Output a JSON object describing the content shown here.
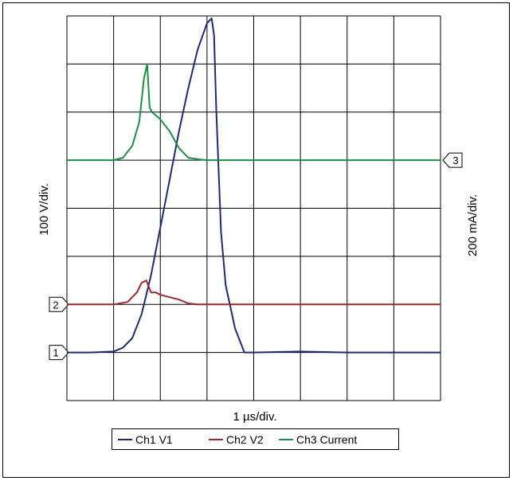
{
  "chart_data": {
    "type": "line",
    "title": "",
    "xlabel": "1 µs/div.",
    "ylabel_left": "100 V/div.",
    "ylabel_right": "200 mA/div.",
    "divisions": {
      "x": 8,
      "y": 8
    },
    "xlim": [
      0,
      8
    ],
    "ylim": [
      0,
      8
    ],
    "grid": true,
    "legend_position": "bottom",
    "markers": [
      {
        "label": "1",
        "side": "left",
        "level": 1.0
      },
      {
        "label": "2",
        "side": "left",
        "level": 2.0
      },
      {
        "label": "3",
        "side": "right",
        "level": 5.0
      }
    ],
    "series": [
      {
        "name": "Ch1 V1",
        "color": "#1f2a7a",
        "x": [
          0,
          0.5,
          1.0,
          1.2,
          1.4,
          1.6,
          1.8,
          2.0,
          2.2,
          2.4,
          2.6,
          2.8,
          3.0,
          3.1,
          3.15,
          3.2,
          3.3,
          3.4,
          3.6,
          3.8,
          4.0,
          5.0,
          6.0,
          7.0,
          8.0
        ],
        "y": [
          1.0,
          1.0,
          1.02,
          1.1,
          1.3,
          1.8,
          2.6,
          3.6,
          4.6,
          5.6,
          6.5,
          7.3,
          7.85,
          7.95,
          7.6,
          6.0,
          3.5,
          2.4,
          1.5,
          1.0,
          1.0,
          1.02,
          1.0,
          1.0,
          1.0
        ]
      },
      {
        "name": "Ch2 V2",
        "color": "#a0262a",
        "x": [
          0,
          1.0,
          1.3,
          1.5,
          1.6,
          1.7,
          1.8,
          1.9,
          2.0,
          2.2,
          2.4,
          2.6,
          2.8,
          3.0,
          4.0,
          6.0,
          8.0
        ],
        "y": [
          2.0,
          2.0,
          2.05,
          2.25,
          2.45,
          2.5,
          2.25,
          2.25,
          2.2,
          2.15,
          2.1,
          2.02,
          2.0,
          2.0,
          2.0,
          2.0,
          2.0
        ]
      },
      {
        "name": "Ch3 Current",
        "color": "#1a9140",
        "x": [
          0,
          1.0,
          1.2,
          1.4,
          1.55,
          1.65,
          1.72,
          1.77,
          1.82,
          2.0,
          2.2,
          2.4,
          2.6,
          2.8,
          3.0,
          4.0,
          6.0,
          8.0
        ],
        "y": [
          5.0,
          5.0,
          5.05,
          5.3,
          5.8,
          6.7,
          7.0,
          6.1,
          6.0,
          5.85,
          5.6,
          5.25,
          5.05,
          5.02,
          5.0,
          5.0,
          5.0,
          5.0
        ]
      }
    ]
  }
}
